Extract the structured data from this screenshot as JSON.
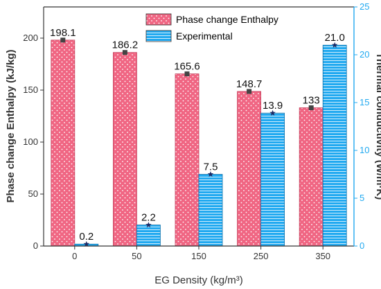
{
  "chart_data": {
    "type": "bar",
    "xlabel": "EG Density (kg/m³)",
    "categories": [
      "0",
      "50",
      "150",
      "250",
      "350"
    ],
    "series": [
      {
        "name": "Phase change Enthalpy",
        "axis": "left",
        "color": "#f06683",
        "values": [
          198.1,
          186.2,
          165.6,
          148.7,
          133
        ],
        "labels": [
          "198.1",
          "186.2",
          "165.6",
          "148.7",
          "133"
        ]
      },
      {
        "name": "Experimental",
        "axis": "right",
        "color": "#21a9f0",
        "values": [
          0.2,
          2.2,
          7.5,
          13.9,
          21.0
        ],
        "labels": [
          "0.2",
          "2.2",
          "7.5",
          "13.9",
          "21.0"
        ]
      }
    ],
    "ylabel_left": "Phase change Enthalpy (kJ/kg)",
    "ylabel_right": "Thermal conductivity (W/m·K)",
    "ylim_left": [
      0,
      230
    ],
    "yticks_left": [
      0,
      50,
      100,
      150,
      200
    ],
    "ylim_right": [
      0,
      25
    ],
    "yticks_right": [
      0,
      5,
      10,
      15,
      20,
      25
    ],
    "legend_position": "top-right",
    "grid": false
  }
}
